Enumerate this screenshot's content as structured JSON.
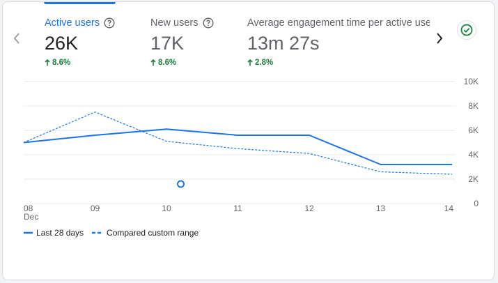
{
  "metrics": [
    {
      "label": "Active users",
      "value": "26K",
      "delta": "8.6%"
    },
    {
      "label": "New users",
      "value": "17K",
      "delta": "8.6%"
    },
    {
      "label": "Average engagement time per active user",
      "value": "13m 27s",
      "delta": "2.8%"
    }
  ],
  "colors": {
    "accent": "#1a73e8",
    "positive": "#188038",
    "grid": "#e8eaed",
    "axis_text": "#5f6368"
  },
  "icons": {
    "prev": "chevron-left-icon",
    "next": "chevron-right-icon",
    "status": "check-circle-icon",
    "help": "help-circle-icon",
    "up": "arrow-up-icon"
  },
  "chart_data": {
    "type": "line",
    "x": [
      "08",
      "09",
      "10",
      "11",
      "12",
      "13",
      "14"
    ],
    "x_sublabel": "Dec",
    "y_ticks": [
      "0",
      "2K",
      "4K",
      "6K",
      "8K",
      "10K"
    ],
    "ylim": [
      0,
      10000
    ],
    "series": [
      {
        "name": "Last 28 days",
        "style": "solid",
        "values": [
          5000,
          5600,
          6100,
          5600,
          5600,
          3200,
          3200
        ]
      },
      {
        "name": "Compared custom range",
        "style": "dashed",
        "values": [
          5000,
          7500,
          5100,
          4500,
          4100,
          2600,
          2400
        ]
      }
    ],
    "annotation": {
      "x": 10.2,
      "y": 1600
    }
  },
  "legend": [
    "Last 28 days",
    "Compared custom range"
  ]
}
